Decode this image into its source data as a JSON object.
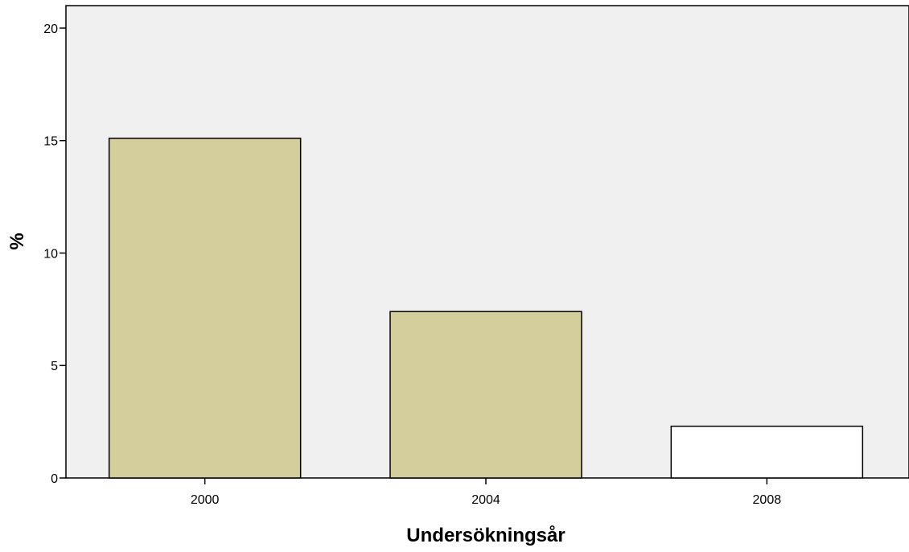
{
  "chart_data": {
    "type": "bar",
    "title": "",
    "xlabel": "Undersökningsår",
    "ylabel": "%",
    "categories": [
      "2000",
      "2004",
      "2008"
    ],
    "values": [
      15.1,
      7.4,
      2.3
    ],
    "bar_colors": [
      "#d3ce9b",
      "#d3ce9b",
      "#ffffff"
    ],
    "ylim": [
      0,
      21
    ],
    "yticks": [
      0,
      5,
      10,
      15,
      20
    ],
    "plot_background": "#f0f0f0",
    "bar_outline": "#000000",
    "grid": false,
    "legend": "none"
  }
}
